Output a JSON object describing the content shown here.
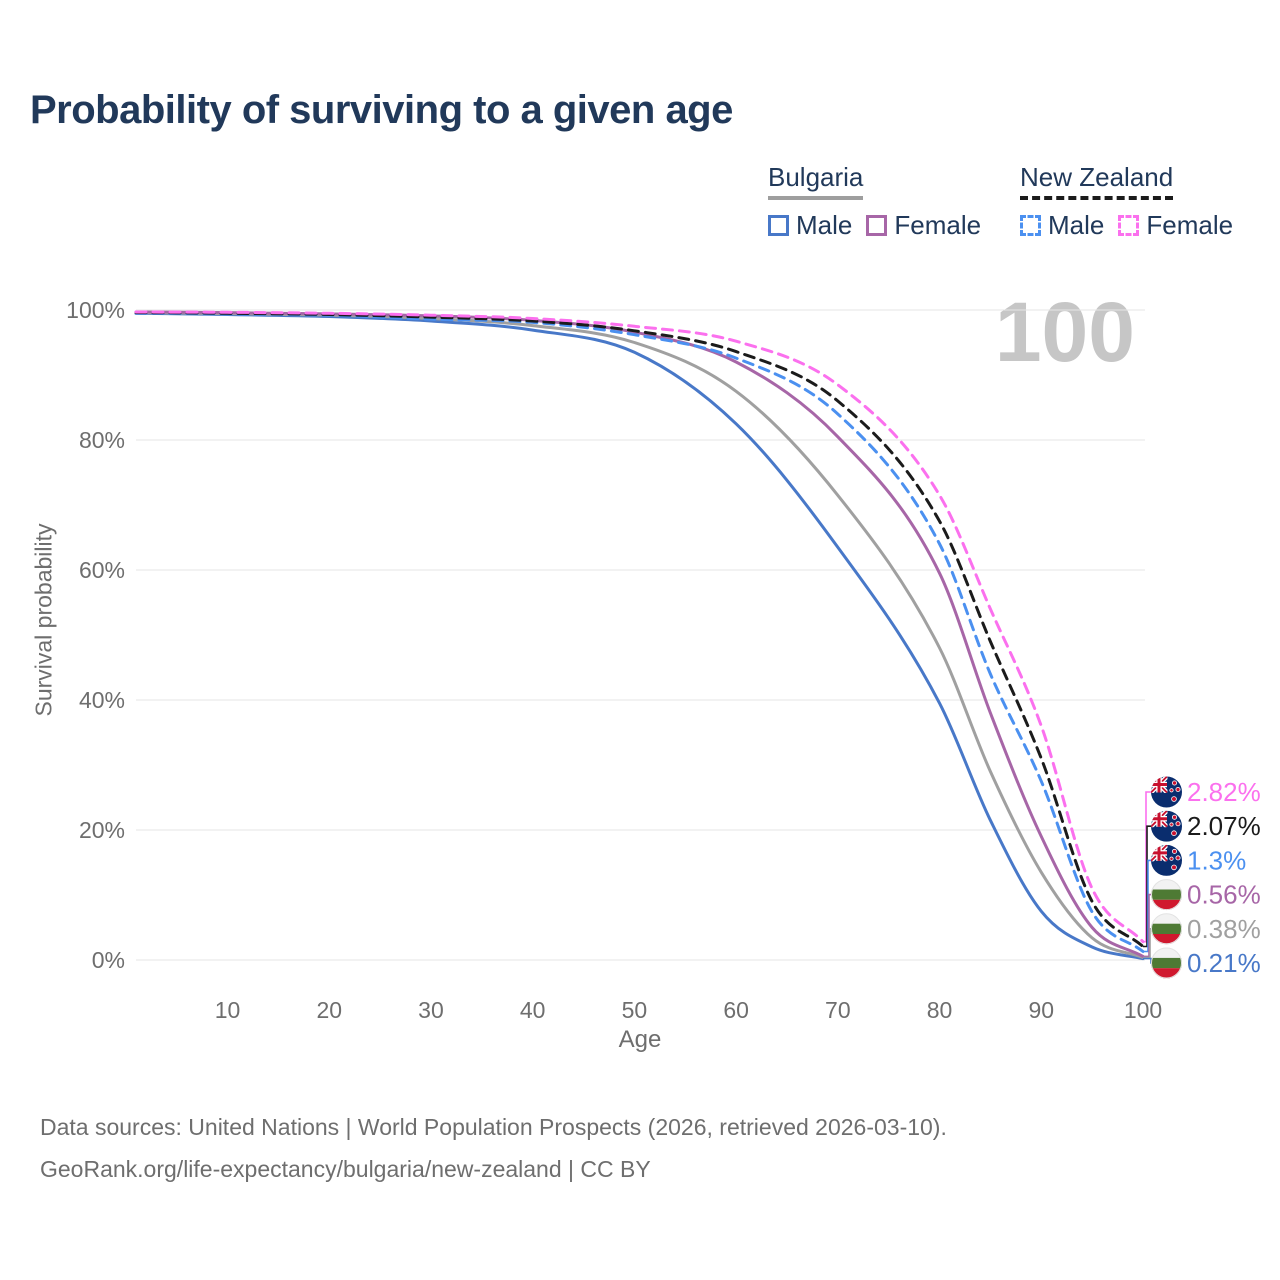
{
  "title": "Probability of surviving to a given age",
  "legend": {
    "groups": [
      {
        "id": "bulgaria",
        "label": "Bulgaria",
        "line_style": "solid",
        "line_color": "#9e9e9e",
        "items": [
          {
            "label": "Male",
            "color": "#4878c8",
            "dashed": false
          },
          {
            "label": "Female",
            "color": "#a766a7",
            "dashed": false
          }
        ]
      },
      {
        "id": "new-zealand",
        "label": "New Zealand",
        "line_style": "dashed",
        "line_color": "#1b1b1b",
        "items": [
          {
            "label": "Male",
            "color": "#4b90f0",
            "dashed": true
          },
          {
            "label": "Female",
            "color": "#fb70ee",
            "dashed": true
          }
        ]
      }
    ]
  },
  "chart_data": {
    "type": "line",
    "title": "Probability of surviving to a given age",
    "xlabel": "Age",
    "ylabel": "Survival probability",
    "xlim": [
      1,
      100
    ],
    "ylim": [
      0,
      100
    ],
    "grid": "horizontal",
    "age_indicator": "100",
    "x_ticks": [
      {
        "value": 10,
        "label": "10"
      },
      {
        "value": 20,
        "label": "20"
      },
      {
        "value": 30,
        "label": "30"
      },
      {
        "value": 40,
        "label": "40"
      },
      {
        "value": 50,
        "label": "50"
      },
      {
        "value": 60,
        "label": "60"
      },
      {
        "value": 70,
        "label": "70"
      },
      {
        "value": 80,
        "label": "80"
      },
      {
        "value": 90,
        "label": "90"
      },
      {
        "value": 100,
        "label": "100"
      }
    ],
    "y_ticks": [
      {
        "value": 0,
        "label": "0%"
      },
      {
        "value": 20,
        "label": "20%"
      },
      {
        "value": 40,
        "label": "40%"
      },
      {
        "value": 60,
        "label": "60%"
      },
      {
        "value": 80,
        "label": "80%"
      },
      {
        "value": 100,
        "label": "100%"
      }
    ],
    "x": [
      1,
      10,
      20,
      30,
      40,
      50,
      60,
      70,
      80,
      85,
      90,
      95,
      100
    ],
    "series": [
      {
        "id": "bulgaria-male",
        "name": "Bulgaria Male",
        "color": "#4878c8",
        "dashed": false,
        "flag": "bg",
        "end_label": "0.21%",
        "values": [
          99.5,
          99.3,
          99.0,
          98.3,
          96.9,
          93.5,
          82.5,
          63.5,
          39.5,
          21.5,
          7.5,
          2.0,
          0.21
        ]
      },
      {
        "id": "bulgaria-total",
        "name": "Bulgaria (both sexes)",
        "color": "#a0a0a0",
        "dashed": false,
        "flag": "bg",
        "end_label": "0.38%",
        "values": [
          99.6,
          99.45,
          99.2,
          98.7,
          97.6,
          95.0,
          87.5,
          71.5,
          48.0,
          29.0,
          13.5,
          3.4,
          0.38
        ]
      },
      {
        "id": "bulgaria-female",
        "name": "Bulgaria Female",
        "color": "#a766a7",
        "dashed": false,
        "flag": "bg",
        "end_label": "0.56%",
        "values": [
          99.7,
          99.6,
          99.4,
          99.1,
          98.4,
          96.6,
          92.0,
          80.5,
          59.5,
          38.0,
          19.0,
          5.0,
          0.56
        ]
      },
      {
        "id": "new-zealand-male",
        "name": "New Zealand Male",
        "color": "#4b90f0",
        "dashed": true,
        "flag": "nz",
        "end_label": "1.3%",
        "values": [
          99.5,
          99.4,
          99.2,
          98.6,
          98.1,
          96.2,
          92.6,
          84.0,
          64.0,
          44.0,
          27.5,
          7.4,
          1.3
        ]
      },
      {
        "id": "new-zealand-total",
        "name": "New Zealand (both sexes)",
        "color": "#1b1b1b",
        "dashed": true,
        "flag": "nz",
        "end_label": "2.07%",
        "values": [
          99.6,
          99.5,
          99.3,
          98.9,
          98.3,
          96.8,
          93.6,
          86.0,
          67.5,
          49.0,
          31.0,
          9.0,
          2.07
        ]
      },
      {
        "id": "new-zealand-female",
        "name": "New Zealand Female",
        "color": "#fb70ee",
        "dashed": true,
        "flag": "nz",
        "end_label": "2.82%",
        "values": [
          99.7,
          99.65,
          99.5,
          99.2,
          98.7,
          97.5,
          95.2,
          88.5,
          71.5,
          54.0,
          36.0,
          11.0,
          2.82
        ]
      }
    ]
  },
  "source": {
    "line1": "Data sources: United Nations | World Population Prospects (2026, retrieved 2026-03-10).",
    "line2": "GeoRank.org/life-expectancy/bulgaria/new-zealand | CC BY"
  }
}
